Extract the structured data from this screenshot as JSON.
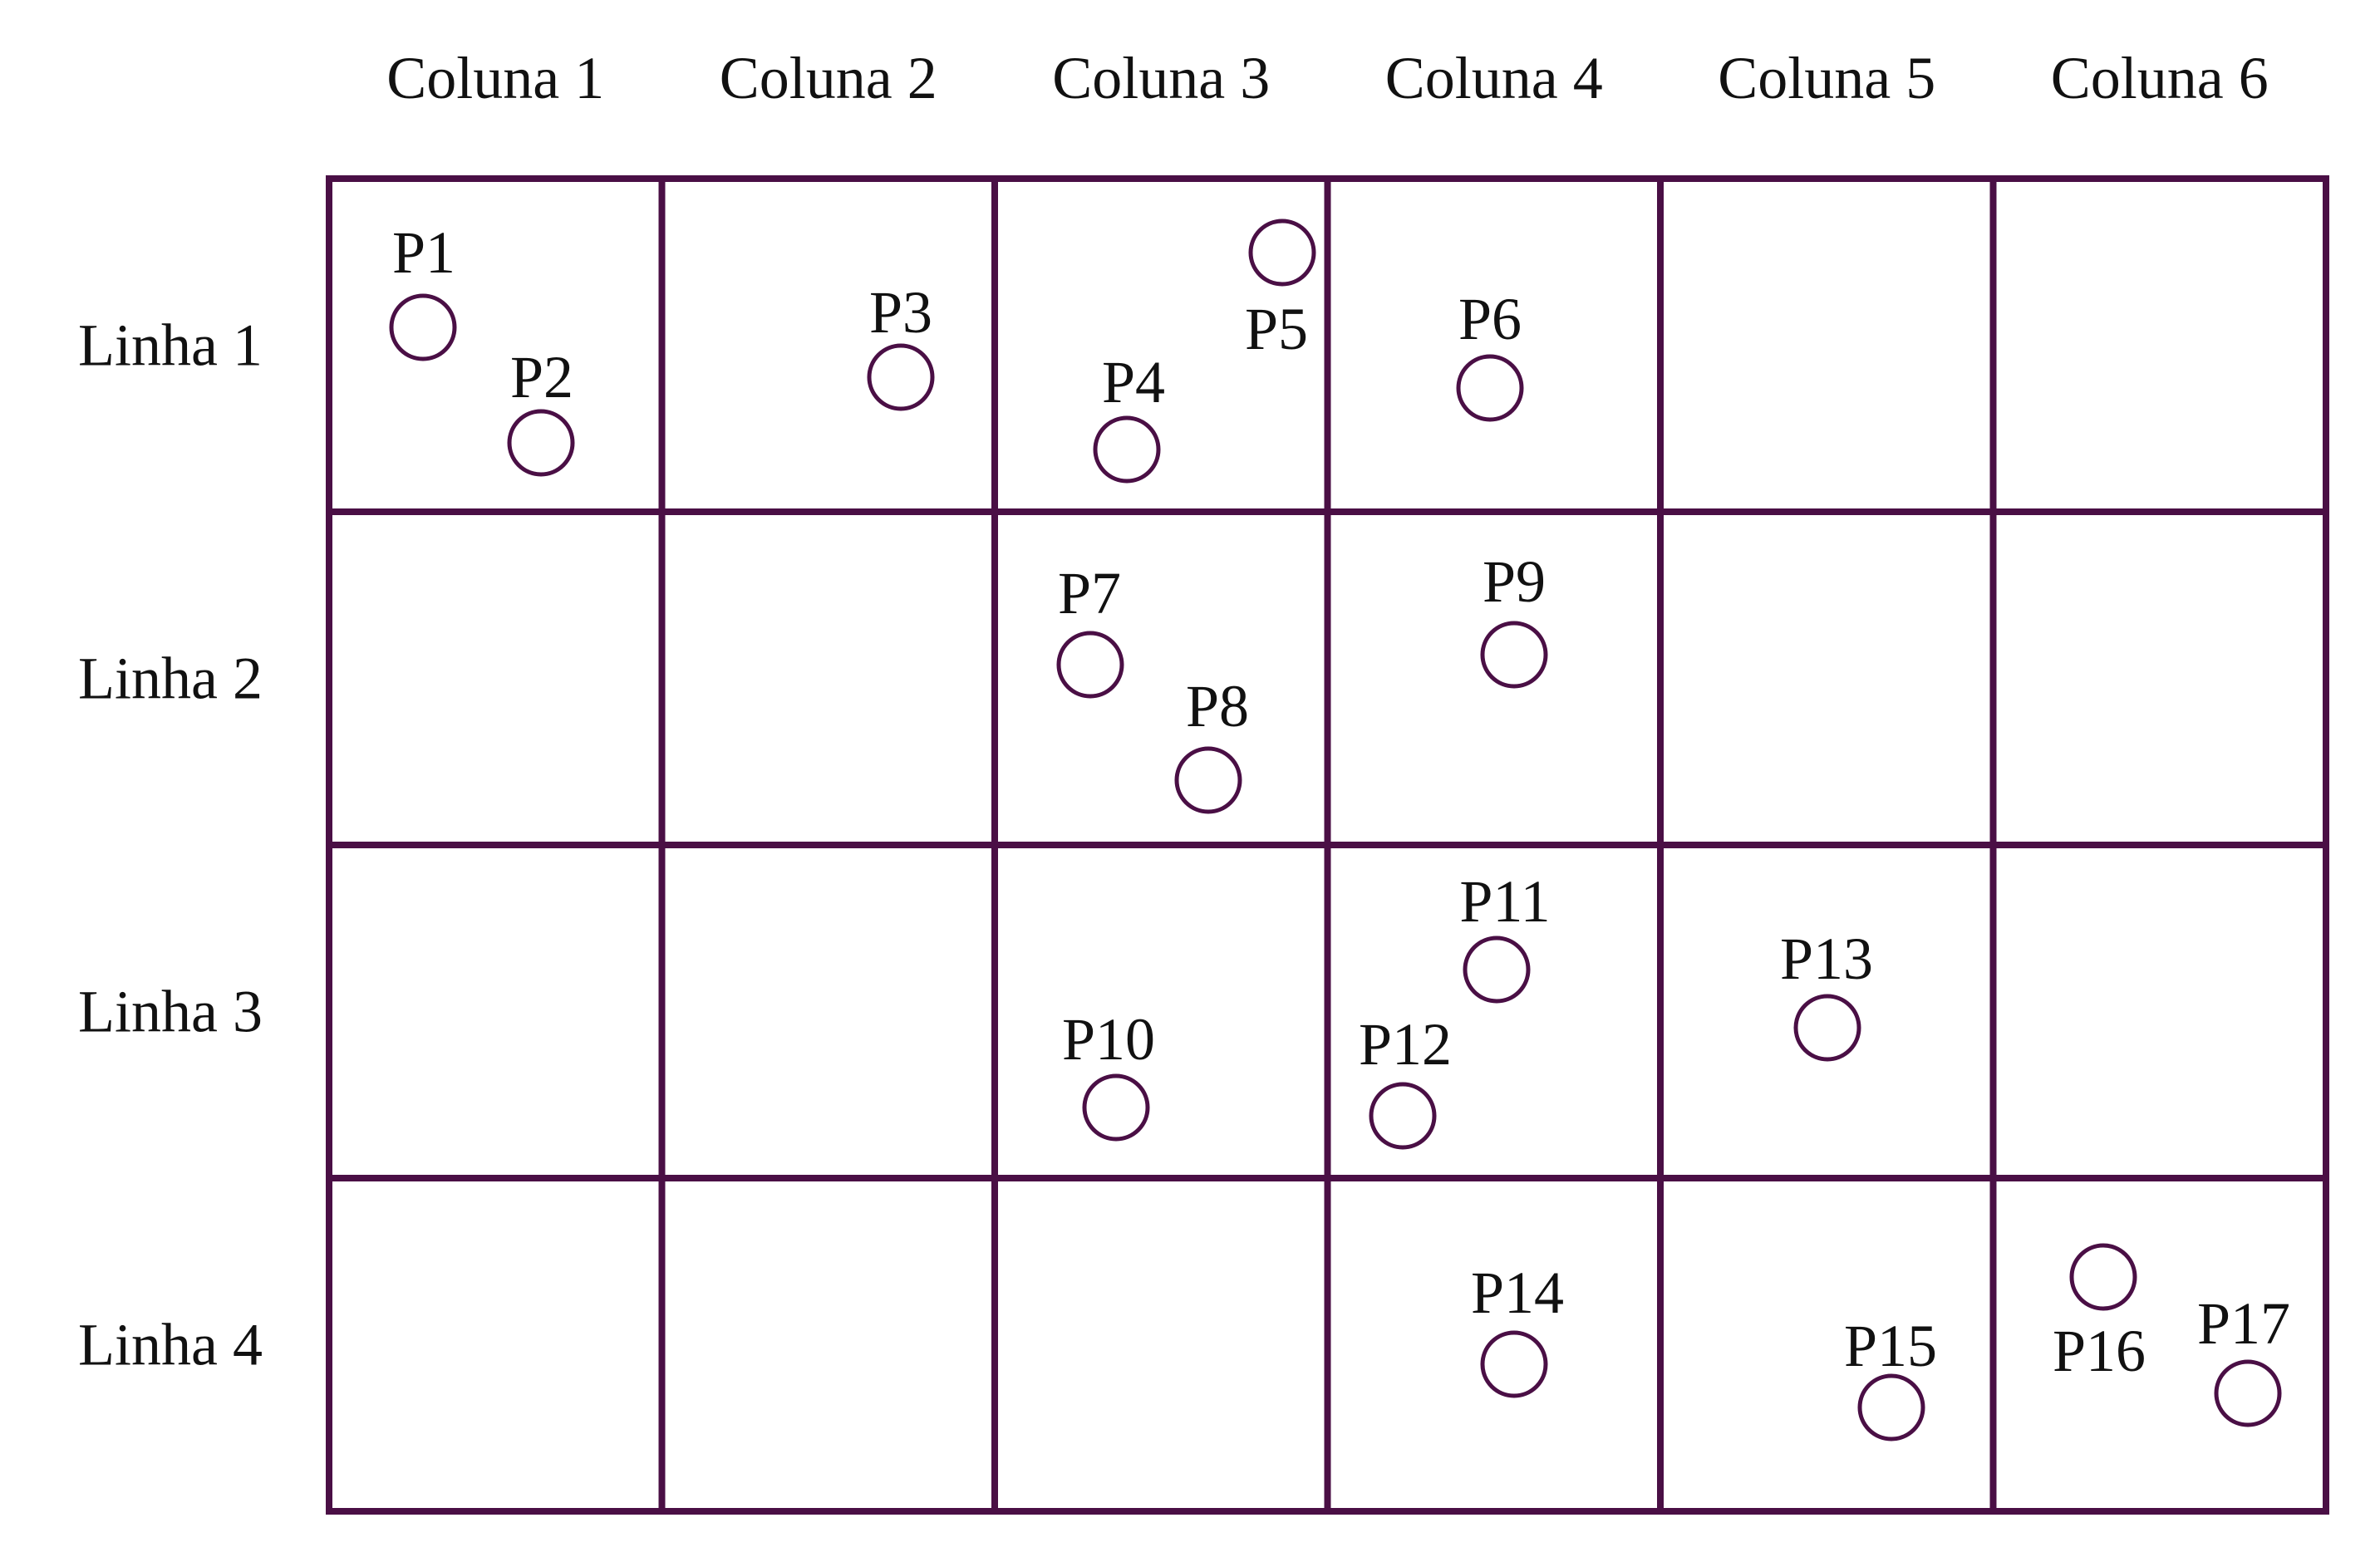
{
  "grid": {
    "line_color": "#4a0f45",
    "columns": [
      "Coluna 1",
      "Coluna 2",
      "Coluna 3",
      "Coluna 4",
      "Coluna 5",
      "Coluna 6"
    ],
    "rows": [
      "Linha 1",
      "Linha 2",
      "Linha 3",
      "Linha 4"
    ]
  },
  "points": [
    {
      "label": "P1",
      "row": 1,
      "column": 1
    },
    {
      "label": "P2",
      "row": 1,
      "column": 1
    },
    {
      "label": "P3",
      "row": 1,
      "column": 2
    },
    {
      "label": "P4",
      "row": 1,
      "column": 3
    },
    {
      "label": "P5",
      "row": 1,
      "column": 3
    },
    {
      "label": "P6",
      "row": 1,
      "column": 4
    },
    {
      "label": "P7",
      "row": 2,
      "column": 3
    },
    {
      "label": "P8",
      "row": 2,
      "column": 3
    },
    {
      "label": "P9",
      "row": 2,
      "column": 4
    },
    {
      "label": "P10",
      "row": 3,
      "column": 3
    },
    {
      "label": "P11",
      "row": 3,
      "column": 4
    },
    {
      "label": "P12",
      "row": 3,
      "column": 4
    },
    {
      "label": "P13",
      "row": 3,
      "column": 5
    },
    {
      "label": "P14",
      "row": 4,
      "column": 4
    },
    {
      "label": "P15",
      "row": 4,
      "column": 5
    },
    {
      "label": "P16",
      "row": 4,
      "column": 6
    },
    {
      "label": "P17",
      "row": 4,
      "column": 6
    }
  ]
}
